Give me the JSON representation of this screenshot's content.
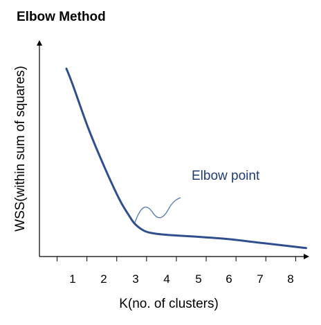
{
  "chart_data": {
    "type": "line",
    "title": "Elbow Method",
    "xlabel": "K(no. of clusters)",
    "ylabel": "WSS(within sum of squares)",
    "categories": [
      "1",
      "2",
      "3",
      "4",
      "5",
      "6",
      "7",
      "8"
    ],
    "x_ticks": [
      1,
      2,
      3,
      4,
      5,
      6,
      7,
      8
    ],
    "xlim": [
      0,
      8.6
    ],
    "ylim": [
      0,
      10
    ],
    "grid": false,
    "legend": "none",
    "series": [
      {
        "color": "#2f4f8f",
        "x": [
          0.8,
          1.0,
          1.5,
          2.0,
          2.5,
          2.8,
          3.0,
          3.3,
          3.6,
          4.0,
          5.0,
          6.0,
          7.0,
          8.0,
          8.5
        ],
        "y": [
          9.5,
          8.7,
          6.5,
          4.6,
          2.9,
          2.1,
          1.65,
          1.3,
          1.17,
          1.1,
          1.0,
          0.88,
          0.7,
          0.52,
          0.43
        ]
      }
    ],
    "annotations": [
      {
        "text": "Elbow point",
        "color": "#1f3b78",
        "target": {
          "x": 3.0,
          "y": 1.65
        }
      }
    ],
    "colors": {
      "line": "#2f4f8f",
      "annotation_text": "#1f3b78",
      "pointer": "#5b7fb8",
      "axis": "#000000"
    }
  }
}
